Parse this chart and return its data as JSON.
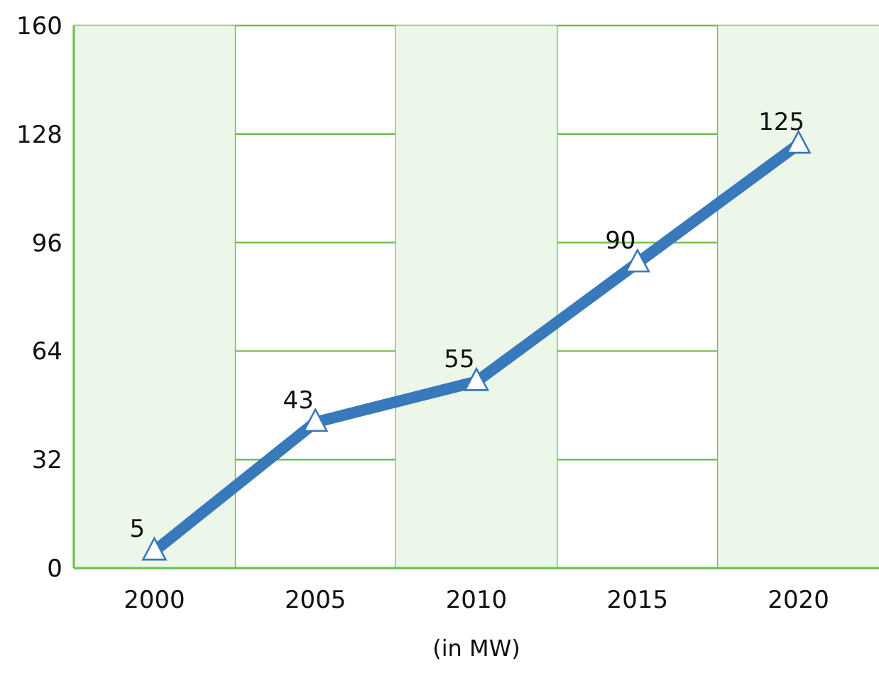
{
  "chart_data": {
    "type": "line",
    "xlabel": "(in MW)",
    "categories": [
      "2000",
      "2005",
      "2010",
      "2015",
      "2020"
    ],
    "series": [
      {
        "color": "#3779ba",
        "values": [
          5,
          43,
          55,
          90,
          125
        ]
      }
    ],
    "ylim": [
      0,
      160
    ],
    "yticks": [
      0,
      32,
      64,
      96,
      128,
      160
    ],
    "grid": true,
    "marker": "triangle",
    "data_labels": true,
    "legend": false,
    "bands": [
      {
        "axis": "x",
        "from": "2000",
        "to": "2000",
        "color": "#edf7e9"
      },
      {
        "axis": "x",
        "from": "2010",
        "to": "2010",
        "color": "#edf7e9"
      },
      {
        "axis": "x",
        "from": "2020",
        "to": "2020",
        "color": "#edf7e9"
      }
    ]
  }
}
